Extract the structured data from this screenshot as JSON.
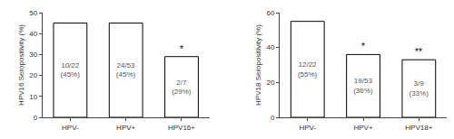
{
  "chart_data": [
    {
      "type": "bar",
      "categories": [
        "HPV-",
        "HPV+",
        "HPV16+"
      ],
      "values": [
        45,
        45,
        29
      ],
      "value_labels": [
        "10/22\n(45%)",
        "24/53\n(45%)",
        "2/7\n(29%)"
      ],
      "data_labels": true,
      "annotations": [
        {
          "x": "HPV16+",
          "text": "*"
        }
      ],
      "ylabel": "HPV16 Seropositivity (%)",
      "ylim": [
        0,
        50
      ],
      "yticks": [
        0,
        10,
        20,
        30,
        40,
        50
      ],
      "color": "white",
      "grid": false
    },
    {
      "type": "bar",
      "categories": [
        "HPV-",
        "HPV+",
        "HPV18+"
      ],
      "values": [
        55,
        36,
        33
      ],
      "value_labels": [
        "12/22\n(55%)",
        "19/53\n(36%)",
        "3/9\n(33%)"
      ],
      "data_labels": true,
      "annotations": [
        {
          "x": "HPV+",
          "text": "*"
        },
        {
          "x": "HPV18+",
          "text": "**"
        }
      ],
      "ylabel": "HPV18 Seropositivity (%)",
      "ylim": [
        0,
        60
      ],
      "yticks": [
        0,
        20,
        40,
        60
      ],
      "color": "white",
      "grid": false
    }
  ]
}
